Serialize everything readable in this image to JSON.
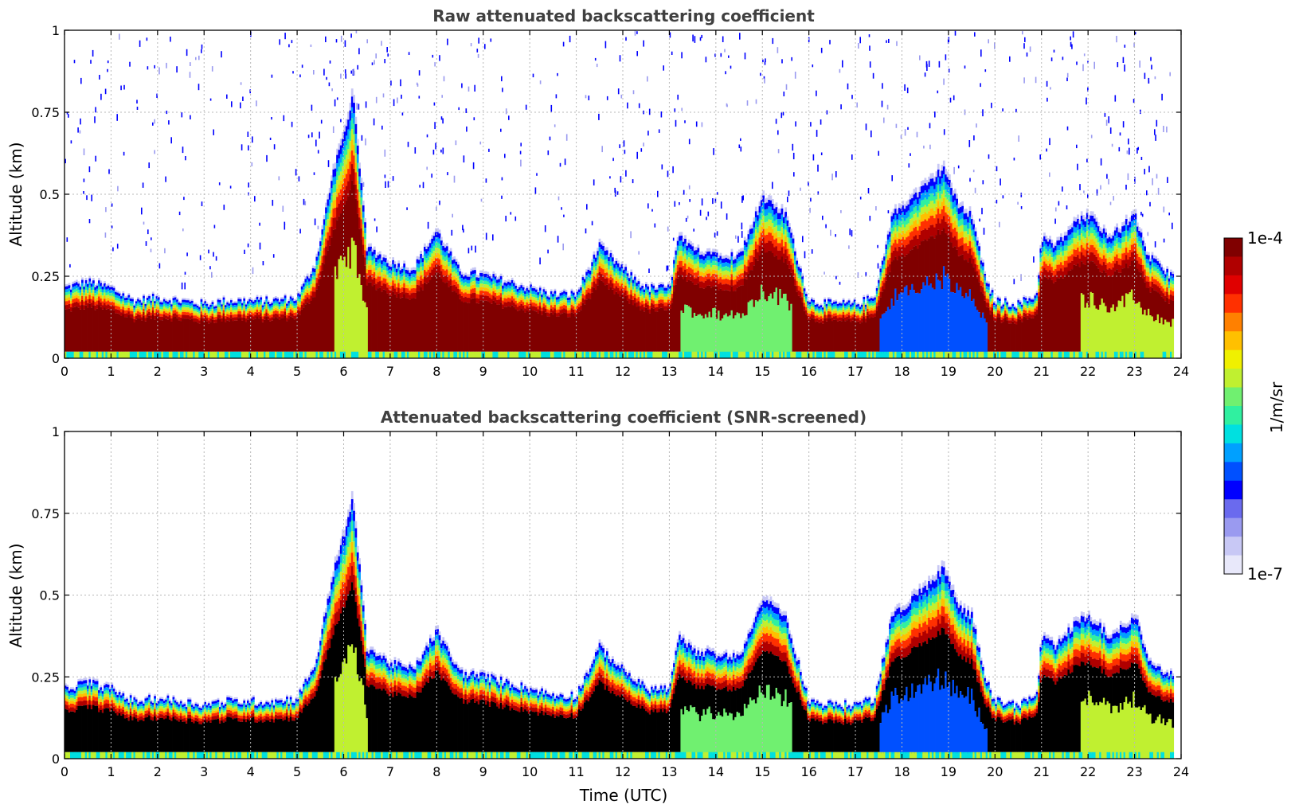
{
  "colors": {
    "ramp": [
      "#e8e8fa",
      "#c8c8f5",
      "#9a9af0",
      "#6a6aee",
      "#0000ff",
      "#0050ff",
      "#00a0ff",
      "#00e0e0",
      "#30f0a0",
      "#70f070",
      "#c0f030",
      "#f0f000",
      "#ffc000",
      "#ff8000",
      "#ff3000",
      "#e00000",
      "#b00000",
      "#800000"
    ],
    "screened_top": "#000000",
    "grid": "#b8b8b8",
    "title": "#404040"
  },
  "colorbar": {
    "min_label": "1e-7",
    "max_label": "1e-4",
    "unit_label": "1/m/sr"
  },
  "chart_data": [
    {
      "type": "heatmap",
      "title": "Raw attenuated backscattering coefficient",
      "xlabel": "",
      "ylabel": "Altitude (km)",
      "xlim": [
        0,
        24
      ],
      "ylim": [
        0,
        1
      ],
      "xticks": [
        "0",
        "1",
        "2",
        "3",
        "4",
        "5",
        "6",
        "7",
        "8",
        "9",
        "10",
        "11",
        "12",
        "13",
        "14",
        "15",
        "16",
        "17",
        "18",
        "19",
        "20",
        "21",
        "22",
        "23",
        "24"
      ],
      "yticks": [
        "0",
        "0.25",
        "0.5",
        "0.75",
        "1"
      ],
      "grid": true,
      "colorscale": "jet, log10 from 1e-7 to 1e-4 1/m/sr",
      "layer_top_km": {
        "time_utc": [
          0,
          0.5,
          1,
          1.5,
          2,
          2.5,
          3,
          3.5,
          4,
          4.5,
          5,
          5.4,
          5.8,
          6.0,
          6.2,
          6.5,
          7,
          7.5,
          8,
          8.5,
          9,
          9.5,
          10,
          10.5,
          11,
          11.5,
          12,
          12.5,
          13,
          13.2,
          13.5,
          14,
          14.5,
          15,
          15.5,
          16,
          16.5,
          17,
          17.4,
          17.8,
          18.2,
          18.6,
          18.9,
          19.2,
          19.5,
          19.8,
          20,
          20.5,
          20.9,
          21,
          21.3,
          21.7,
          22,
          22.5,
          23,
          23.3,
          23.6,
          23.8
        ],
        "km": [
          0.22,
          0.24,
          0.22,
          0.18,
          0.19,
          0.18,
          0.17,
          0.18,
          0.18,
          0.18,
          0.19,
          0.3,
          0.6,
          0.7,
          0.82,
          0.35,
          0.3,
          0.28,
          0.4,
          0.27,
          0.26,
          0.24,
          0.22,
          0.2,
          0.2,
          0.35,
          0.28,
          0.22,
          0.22,
          0.38,
          0.34,
          0.33,
          0.32,
          0.5,
          0.45,
          0.18,
          0.17,
          0.17,
          0.19,
          0.45,
          0.5,
          0.55,
          0.6,
          0.48,
          0.45,
          0.25,
          0.18,
          0.17,
          0.2,
          0.38,
          0.35,
          0.42,
          0.45,
          0.38,
          0.45,
          0.32,
          0.28,
          0.26
        ]
      },
      "aerosol_base_regions_utc": [
        [
          5.8,
          6.5
        ],
        [
          13.2,
          15.6
        ],
        [
          17.5,
          19.8
        ],
        [
          21.8,
          23.8
        ]
      ],
      "sparse_upper_signal": true
    },
    {
      "type": "heatmap",
      "title": "Attenuated backscattering coefficient (SNR-screened)",
      "xlabel": "Time (UTC)",
      "ylabel": "Altitude (km)",
      "xlim": [
        0,
        24
      ],
      "ylim": [
        0,
        1
      ],
      "xticks": [
        "0",
        "1",
        "2",
        "3",
        "4",
        "5",
        "6",
        "7",
        "8",
        "9",
        "10",
        "11",
        "12",
        "13",
        "14",
        "15",
        "16",
        "17",
        "18",
        "19",
        "20",
        "21",
        "22",
        "23",
        "24"
      ],
      "yticks": [
        "0",
        "0.25",
        "0.5",
        "0.75",
        "1"
      ],
      "grid": true,
      "colorscale": "jet, log10 from 1e-7 to 1e-4 1/m/sr; saturated values shown black",
      "layer_top_km": {
        "time_utc": [
          0,
          0.5,
          1,
          1.5,
          2,
          2.5,
          3,
          3.5,
          4,
          4.5,
          5,
          5.4,
          5.8,
          6.0,
          6.2,
          6.5,
          7,
          7.5,
          8,
          8.5,
          9,
          9.5,
          10,
          10.5,
          11,
          11.5,
          12,
          12.5,
          13,
          13.2,
          13.5,
          14,
          14.5,
          15,
          15.5,
          16,
          16.5,
          17,
          17.4,
          17.8,
          18.2,
          18.6,
          18.9,
          19.2,
          19.5,
          19.8,
          20,
          20.5,
          20.9,
          21,
          21.3,
          21.7,
          22,
          22.5,
          23,
          23.3,
          23.6,
          23.8
        ],
        "km": [
          0.22,
          0.24,
          0.22,
          0.18,
          0.19,
          0.18,
          0.17,
          0.18,
          0.18,
          0.18,
          0.19,
          0.3,
          0.6,
          0.7,
          0.82,
          0.35,
          0.3,
          0.28,
          0.4,
          0.27,
          0.26,
          0.24,
          0.22,
          0.2,
          0.2,
          0.35,
          0.28,
          0.22,
          0.22,
          0.38,
          0.34,
          0.33,
          0.32,
          0.5,
          0.45,
          0.18,
          0.17,
          0.17,
          0.19,
          0.45,
          0.5,
          0.55,
          0.6,
          0.48,
          0.45,
          0.25,
          0.18,
          0.17,
          0.2,
          0.38,
          0.35,
          0.42,
          0.45,
          0.38,
          0.45,
          0.32,
          0.28,
          0.26
        ]
      },
      "aerosol_base_regions_utc": [
        [
          5.8,
          6.5
        ],
        [
          13.2,
          15.6
        ],
        [
          17.5,
          19.8
        ],
        [
          21.8,
          23.8
        ]
      ],
      "sparse_upper_signal": false
    }
  ]
}
